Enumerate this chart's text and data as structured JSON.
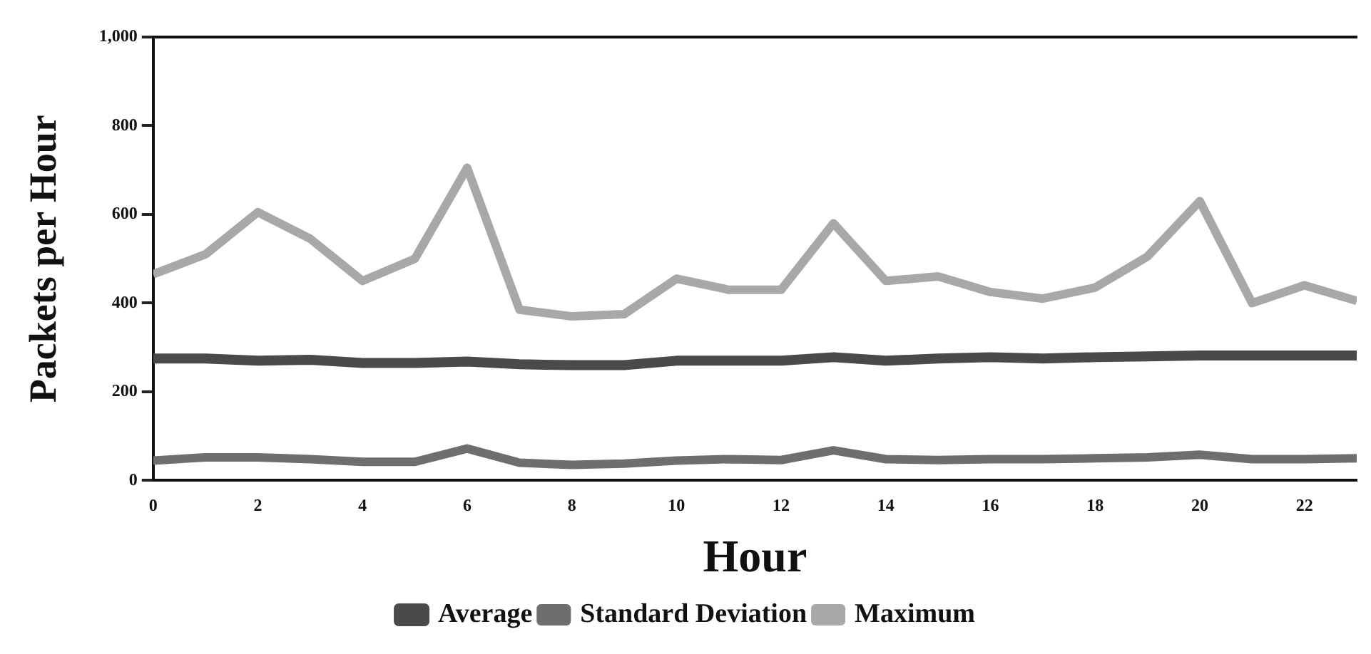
{
  "chart_data": {
    "type": "line",
    "xlabel": "Hour",
    "ylabel": "Packets per Hour",
    "x": [
      0,
      1,
      2,
      3,
      4,
      5,
      6,
      7,
      8,
      9,
      10,
      11,
      12,
      13,
      14,
      15,
      16,
      17,
      18,
      19,
      20,
      21,
      22,
      23
    ],
    "series": [
      {
        "name": "Average",
        "color": "#4a4a4a",
        "values": [
          275,
          275,
          270,
          272,
          265,
          265,
          268,
          262,
          260,
          260,
          270,
          270,
          270,
          278,
          270,
          275,
          278,
          275,
          278,
          280,
          282,
          282,
          282,
          282
        ]
      },
      {
        "name": "Standard Deviation",
        "color": "#6e6e6e",
        "values": [
          45,
          52,
          52,
          48,
          42,
          42,
          72,
          40,
          35,
          38,
          45,
          48,
          46,
          68,
          48,
          46,
          48,
          48,
          50,
          52,
          58,
          48,
          48,
          50
        ]
      },
      {
        "name": "Maximum",
        "color": "#a8a8a8",
        "values": [
          465,
          510,
          605,
          545,
          450,
          500,
          705,
          385,
          370,
          375,
          455,
          430,
          430,
          580,
          450,
          460,
          425,
          410,
          435,
          505,
          630,
          400,
          440,
          405
        ]
      }
    ],
    "xlim": [
      0,
      23
    ],
    "ylim": [
      0,
      1000
    ],
    "xticks": [
      0,
      2,
      4,
      6,
      8,
      10,
      12,
      14,
      16,
      18,
      20,
      22
    ],
    "yticks": [
      0,
      200,
      400,
      600,
      800,
      {
        "value": 1000,
        "label": "1,000"
      }
    ],
    "grid": false,
    "legend": "bottom",
    "marker": "none",
    "line_style": "solid"
  }
}
